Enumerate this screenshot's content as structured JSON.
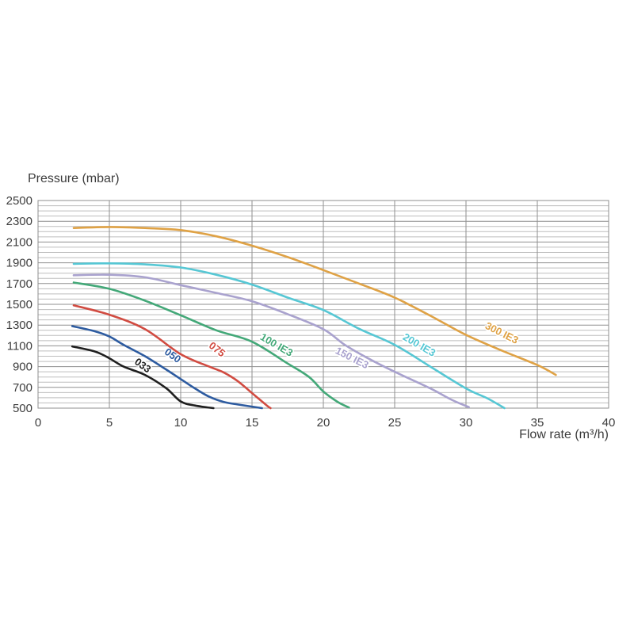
{
  "chart_data": {
    "type": "line",
    "title": "",
    "ylabel": "Pressure (mbar)",
    "xlabel": "Flow rate (m³/h)",
    "xlim": [
      0,
      40
    ],
    "x_tick_step": 5,
    "ylim": [
      500,
      2500
    ],
    "y_tick_step": 200,
    "y_minor_step": 50,
    "grid": "horizontal minor lines every 50 mbar, vertical lines every 5 m3/h",
    "legend_position": "inline rotated labels on curves",
    "colors": {
      "minor_grid": "#bdbdbd",
      "major_grid": "#8f8f8f",
      "tick_label": "#3c3c3c",
      "background": "#ffffff"
    },
    "series": [
      {
        "name": "033",
        "color": "#1f1f1f",
        "label": {
          "x": 7.2,
          "y": 885,
          "angle": 36
        },
        "points": [
          [
            2.4,
            1095
          ],
          [
            4,
            1045
          ],
          [
            5,
            980
          ],
          [
            6,
            900
          ],
          [
            7.5,
            820
          ],
          [
            9,
            690
          ],
          [
            10,
            565
          ],
          [
            11,
            525
          ],
          [
            12.3,
            500
          ]
        ]
      },
      {
        "name": "050",
        "color": "#2d5ba0",
        "label": {
          "x": 9.3,
          "y": 980,
          "angle": 36
        },
        "points": [
          [
            2.4,
            1290
          ],
          [
            4,
            1240
          ],
          [
            5,
            1190
          ],
          [
            6,
            1110
          ],
          [
            7.5,
            1000
          ],
          [
            9,
            870
          ],
          [
            10,
            780
          ],
          [
            11,
            690
          ],
          [
            12,
            610
          ],
          [
            13,
            560
          ],
          [
            14,
            535
          ],
          [
            15.7,
            500
          ]
        ]
      },
      {
        "name": "075",
        "color": "#d14b41",
        "label": {
          "x": 12.4,
          "y": 1040,
          "angle": 38
        },
        "points": [
          [
            2.5,
            1490
          ],
          [
            5,
            1400
          ],
          [
            7.5,
            1260
          ],
          [
            10,
            1020
          ],
          [
            12,
            900
          ],
          [
            13,
            845
          ],
          [
            14,
            760
          ],
          [
            15,
            645
          ],
          [
            16,
            530
          ],
          [
            16.3,
            500
          ]
        ]
      },
      {
        "name": "100 IE3",
        "color": "#43a878",
        "label": {
          "x": 16.6,
          "y": 1080,
          "angle": 30
        },
        "points": [
          [
            2.5,
            1710
          ],
          [
            5,
            1650
          ],
          [
            7.5,
            1535
          ],
          [
            10,
            1395
          ],
          [
            12.5,
            1250
          ],
          [
            15,
            1140
          ],
          [
            17.5,
            930
          ],
          [
            19,
            800
          ],
          [
            20,
            660
          ],
          [
            21,
            560
          ],
          [
            21.8,
            505
          ]
        ]
      },
      {
        "name": "150 IE3",
        "color": "#a9a2ce",
        "label": {
          "x": 21.9,
          "y": 955,
          "angle": 27
        },
        "points": [
          [
            2.5,
            1780
          ],
          [
            5,
            1785
          ],
          [
            7.5,
            1760
          ],
          [
            10,
            1685
          ],
          [
            12.5,
            1610
          ],
          [
            15,
            1530
          ],
          [
            17.5,
            1405
          ],
          [
            20,
            1260
          ],
          [
            21.5,
            1110
          ],
          [
            23,
            990
          ],
          [
            25,
            850
          ],
          [
            27.5,
            690
          ],
          [
            29,
            580
          ],
          [
            30.2,
            510
          ]
        ]
      },
      {
        "name": "200 IE3",
        "color": "#56c7d4",
        "label": {
          "x": 26.6,
          "y": 1080,
          "angle": 30
        },
        "points": [
          [
            2.5,
            1890
          ],
          [
            5,
            1895
          ],
          [
            7.5,
            1885
          ],
          [
            10,
            1855
          ],
          [
            12.5,
            1785
          ],
          [
            15,
            1690
          ],
          [
            17.5,
            1565
          ],
          [
            20,
            1445
          ],
          [
            22.5,
            1265
          ],
          [
            25,
            1110
          ],
          [
            27.5,
            900
          ],
          [
            30,
            690
          ],
          [
            31.5,
            595
          ],
          [
            32.7,
            500
          ]
        ]
      },
      {
        "name": "300 IE3",
        "color": "#dfa245",
        "label": {
          "x": 32.4,
          "y": 1195,
          "angle": 27
        },
        "points": [
          [
            2.5,
            2235
          ],
          [
            5,
            2245
          ],
          [
            7.5,
            2235
          ],
          [
            10,
            2215
          ],
          [
            12.5,
            2155
          ],
          [
            15,
            2065
          ],
          [
            17.5,
            1955
          ],
          [
            20,
            1830
          ],
          [
            22.5,
            1700
          ],
          [
            25,
            1565
          ],
          [
            27.5,
            1390
          ],
          [
            30,
            1205
          ],
          [
            32.5,
            1055
          ],
          [
            35,
            915
          ],
          [
            36.3,
            820
          ]
        ]
      }
    ]
  }
}
